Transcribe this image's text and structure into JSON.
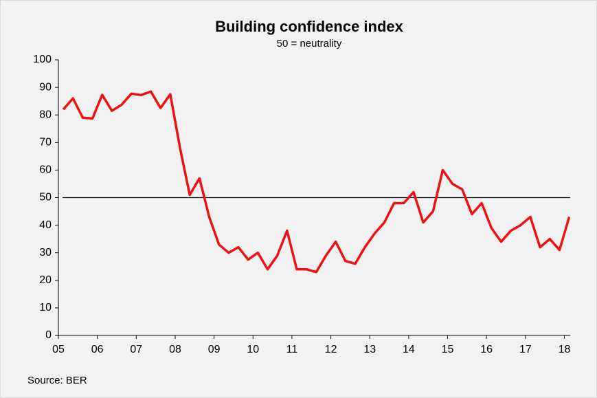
{
  "chart_data": {
    "type": "line",
    "title": "Building confidence index",
    "subtitle": "50 = neutrality",
    "source": "Source: BER",
    "x": [
      2005.125,
      2005.375,
      2005.625,
      2005.875,
      2006.125,
      2006.375,
      2006.625,
      2006.875,
      2007.125,
      2007.375,
      2007.625,
      2007.875,
      2008.125,
      2008.375,
      2008.625,
      2008.875,
      2009.125,
      2009.375,
      2009.625,
      2009.875,
      2010.125,
      2010.375,
      2010.625,
      2010.875,
      2011.125,
      2011.375,
      2011.625,
      2011.875,
      2012.125,
      2012.375,
      2012.625,
      2012.875,
      2013.125,
      2013.375,
      2013.625,
      2013.875,
      2014.125,
      2014.375,
      2014.625,
      2014.875,
      2015.125,
      2015.375,
      2015.625,
      2015.875,
      2016.125,
      2016.375,
      2016.625,
      2016.875,
      2017.125,
      2017.375,
      2017.625,
      2017.875,
      2018.125
    ],
    "series": [
      {
        "name": "Building confidence index",
        "color": "#ee1111",
        "values": [
          82,
          86,
          79,
          78.7,
          87.3,
          81.5,
          83.7,
          87.7,
          87.2,
          88.5,
          82.5,
          87.5,
          68,
          51,
          57,
          43,
          33,
          30,
          32,
          27.5,
          30,
          24,
          29,
          38,
          24,
          24,
          23,
          29,
          34,
          27,
          26,
          32,
          37,
          41,
          48,
          48,
          52,
          41,
          45,
          60,
          55,
          53,
          44,
          48,
          39,
          34,
          38,
          40,
          43,
          32,
          35,
          31,
          43
        ]
      }
    ],
    "reference_line": 50,
    "xlim": [
      2005,
      2018.15
    ],
    "xticks": [
      {
        "value": 2005,
        "label": "05"
      },
      {
        "value": 2006,
        "label": "06"
      },
      {
        "value": 2007,
        "label": "07"
      },
      {
        "value": 2008,
        "label": "08"
      },
      {
        "value": 2009,
        "label": "09"
      },
      {
        "value": 2010,
        "label": "10"
      },
      {
        "value": 2011,
        "label": "11"
      },
      {
        "value": 2012,
        "label": "12"
      },
      {
        "value": 2013,
        "label": "13"
      },
      {
        "value": 2014,
        "label": "14"
      },
      {
        "value": 2015,
        "label": "15"
      },
      {
        "value": 2016,
        "label": "16"
      },
      {
        "value": 2017,
        "label": "17"
      },
      {
        "value": 2018,
        "label": "18"
      }
    ],
    "ylim": [
      0,
      100
    ],
    "yticks": [
      0,
      10,
      20,
      30,
      40,
      50,
      60,
      70,
      80,
      90,
      100
    ]
  }
}
